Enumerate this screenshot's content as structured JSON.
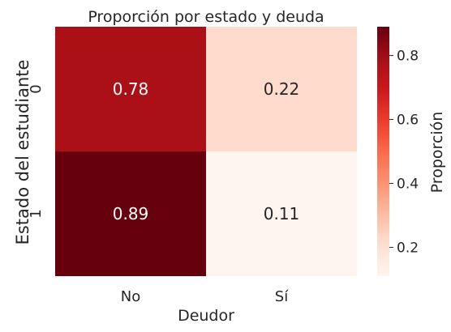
{
  "chart_data": {
    "type": "heatmap",
    "title": "Proporción por estado y deuda",
    "xlabel": "Deudor",
    "ylabel": "Estado del estudiante",
    "x_categories": [
      "No",
      "Sí"
    ],
    "y_categories": [
      "0",
      "1"
    ],
    "values": [
      [
        0.78,
        0.22
      ],
      [
        0.89,
        0.11
      ]
    ],
    "cell_labels": [
      [
        "0.78",
        "0.22"
      ],
      [
        "0.89",
        "0.11"
      ]
    ],
    "colorbar": {
      "label": "Proporción",
      "ticks": [
        "0.2",
        "0.4",
        "0.6",
        "0.8"
      ],
      "tick_values": [
        0.2,
        0.4,
        0.6,
        0.8
      ],
      "range": [
        0.11,
        0.89
      ]
    },
    "colormap": "Reds",
    "colors": {
      "low": "#fff5f0",
      "mid": "#fb6a4a",
      "high": "#67000d"
    }
  }
}
